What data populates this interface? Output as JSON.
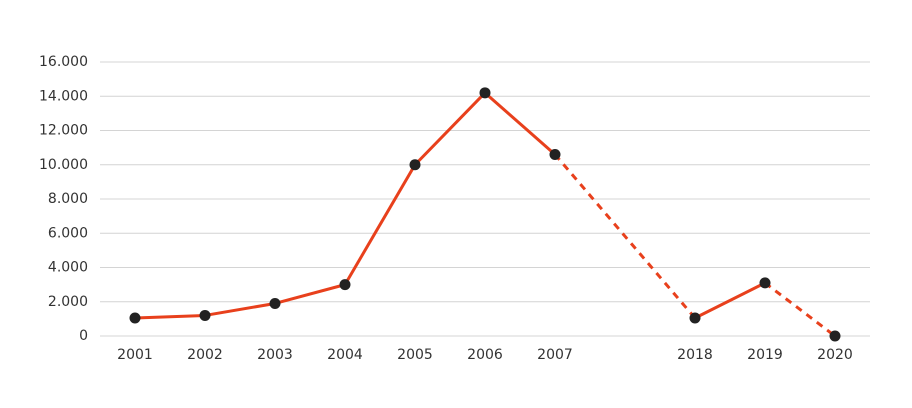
{
  "chart_data": {
    "type": "line",
    "categories": [
      "2001",
      "2002",
      "2003",
      "2004",
      "2005",
      "2006",
      "2007",
      "2018",
      "2019",
      "2020"
    ],
    "values": [
      1050,
      1200,
      1900,
      3000,
      10000,
      14200,
      10600,
      1050,
      3100,
      0
    ],
    "segment_styles": [
      "solid",
      "solid",
      "solid",
      "solid",
      "solid",
      "solid",
      "dashed",
      "solid",
      "dashed"
    ],
    "color": "#e8401c",
    "marker_color": "#222222",
    "ylim": [
      0,
      16000
    ],
    "yticks": [
      0,
      {
        "value": 2000,
        "label": "2.000"
      },
      {
        "value": 4000,
        "label": "4.000"
      },
      {
        "value": 6000,
        "label": "6.000"
      },
      {
        "value": 8000,
        "label": "8.000"
      },
      {
        "value": 10000,
        "label": "10.000"
      },
      {
        "value": 12000,
        "label": "12.000"
      },
      {
        "value": 14000,
        "label": "14.000"
      },
      {
        "value": 16000,
        "label": "16.000"
      }
    ],
    "grid": true
  }
}
